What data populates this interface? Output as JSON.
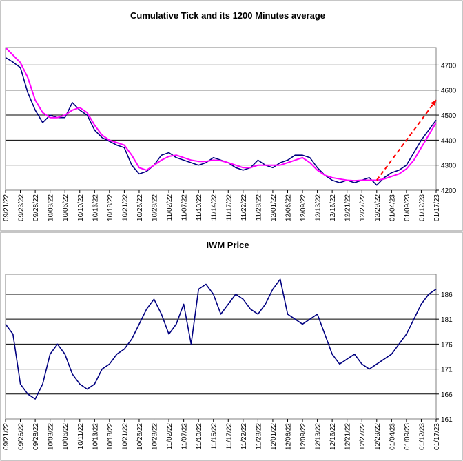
{
  "chart_data": [
    {
      "type": "line",
      "title": "Cumulative Tick and its 1200 Minutes average",
      "xlabel": "",
      "ylabel": "",
      "ylim": [
        4200,
        4770
      ],
      "yticks": [
        4200,
        4300,
        4400,
        4500,
        4600,
        4700
      ],
      "grid": true,
      "legend": "none",
      "x_tick_labels": [
        "09/21/22",
        "09/23/22",
        "09/28/22",
        "10/03/22",
        "10/06/22",
        "10/10/22",
        "10/13/22",
        "10/18/22",
        "10/21/22",
        "10/26/22",
        "10/28/22",
        "11/02/22",
        "11/07/22",
        "11/10/22",
        "11/14/22",
        "11/17/22",
        "11/22/22",
        "11/28/22",
        "12/01/22",
        "12/06/22",
        "12/09/22",
        "12/13/22",
        "12/16/22",
        "12/21/22",
        "12/27/22",
        "12/29/22",
        "01/04/23",
        "01/09/23",
        "01/12/23",
        "01/17/23"
      ],
      "series": [
        {
          "color": "#000080",
          "x": [
            0,
            0.5,
            1,
            1.5,
            2,
            2.5,
            3,
            3.5,
            4,
            4.5,
            5,
            5.5,
            6,
            6.5,
            7,
            7.5,
            8,
            8.5,
            9,
            9.5,
            10,
            10.5,
            11,
            11.5,
            12,
            12.5,
            13,
            13.5,
            14,
            14.5,
            15,
            15.5,
            16,
            16.5,
            17,
            17.5,
            18,
            18.5,
            19,
            19.5,
            20,
            20.5,
            21,
            21.5,
            22,
            22.5,
            23,
            23.5,
            24,
            24.5,
            25,
            25.5,
            26,
            26.5,
            27,
            27.5,
            28,
            28.5,
            29
          ],
          "values": [
            4730,
            4712,
            4690,
            4590,
            4520,
            4470,
            4500,
            4490,
            4490,
            4550,
            4520,
            4500,
            4440,
            4410,
            4395,
            4380,
            4370,
            4300,
            4265,
            4275,
            4300,
            4340,
            4350,
            4330,
            4320,
            4310,
            4300,
            4310,
            4330,
            4320,
            4310,
            4290,
            4280,
            4290,
            4320,
            4300,
            4290,
            4310,
            4320,
            4340,
            4340,
            4330,
            4290,
            4260,
            4240,
            4230,
            4240,
            4230,
            4240,
            4250,
            4220,
            4250,
            4270,
            4280,
            4300,
            4350,
            4400,
            4440,
            4480
          ]
        },
        {
          "color": "#FF00FF",
          "x": [
            0,
            0.5,
            1,
            1.5,
            2,
            2.5,
            3,
            3.5,
            4,
            4.5,
            5,
            5.5,
            6,
            6.5,
            7,
            7.5,
            8,
            8.5,
            9,
            9.5,
            10,
            10.5,
            11,
            11.5,
            12,
            12.5,
            13,
            13.5,
            14,
            14.5,
            15,
            15.5,
            16,
            16.5,
            17,
            17.5,
            18,
            18.5,
            19,
            19.5,
            20,
            20.5,
            21,
            21.5,
            22,
            22.5,
            23,
            23.5,
            24,
            24.5,
            25,
            25.5,
            26,
            26.5,
            27,
            27.5,
            28,
            28.5,
            29
          ],
          "values": [
            4770,
            4740,
            4710,
            4650,
            4560,
            4510,
            4490,
            4490,
            4500,
            4520,
            4530,
            4510,
            4460,
            4420,
            4400,
            4390,
            4380,
            4340,
            4290,
            4280,
            4300,
            4320,
            4335,
            4340,
            4330,
            4320,
            4315,
            4315,
            4320,
            4318,
            4310,
            4300,
            4290,
            4290,
            4300,
            4300,
            4300,
            4300,
            4310,
            4320,
            4330,
            4310,
            4280,
            4260,
            4250,
            4245,
            4240,
            4238,
            4240,
            4240,
            4240,
            4245,
            4255,
            4265,
            4285,
            4320,
            4370,
            4420,
            4470
          ]
        }
      ],
      "annotations": [
        {
          "type": "arrow",
          "color": "#FF0000",
          "style": "dashed",
          "from": {
            "x": 25,
            "y": 4240
          },
          "to": {
            "x": 29,
            "y": 4560
          }
        }
      ]
    },
    {
      "type": "line",
      "title": "IWM Price",
      "xlabel": "",
      "ylabel": "",
      "ylim": [
        161,
        190
      ],
      "yticks": [
        161,
        166,
        171,
        176,
        181,
        186
      ],
      "grid": true,
      "legend": "none",
      "x_tick_labels": [
        "09/21/22",
        "09/26/22",
        "09/28/22",
        "10/03/22",
        "10/06/22",
        "10/11/22",
        "10/13/22",
        "10/18/22",
        "10/21/22",
        "10/26/22",
        "10/28/22",
        "11/02/22",
        "11/07/22",
        "11/10/22",
        "11/15/22",
        "11/17/22",
        "11/22/22",
        "11/28/22",
        "12/01/22",
        "12/06/22",
        "12/09/22",
        "12/13/22",
        "12/16/22",
        "12/21/22",
        "12/27/22",
        "12/29/22",
        "01/04/23",
        "01/09/23",
        "01/12/23",
        "01/17/23"
      ],
      "series": [
        {
          "color": "#000080",
          "x": [
            0,
            0.5,
            1,
            1.5,
            2,
            2.5,
            3,
            3.5,
            4,
            4.5,
            5,
            5.5,
            6,
            6.5,
            7,
            7.5,
            8,
            8.5,
            9,
            9.5,
            10,
            10.5,
            11,
            11.5,
            12,
            12.5,
            13,
            13.5,
            14,
            14.5,
            15,
            15.5,
            16,
            16.5,
            17,
            17.5,
            18,
            18.5,
            19,
            19.5,
            20,
            20.5,
            21,
            21.5,
            22,
            22.5,
            23,
            23.5,
            24,
            24.5,
            25,
            25.5,
            26,
            26.5,
            27,
            27.5,
            28,
            28.5,
            29
          ],
          "values": [
            180,
            178,
            168,
            166,
            165,
            168,
            174,
            176,
            174,
            170,
            168,
            167,
            168,
            171,
            172,
            174,
            175,
            177,
            180,
            183,
            185,
            182,
            178,
            180,
            184,
            176,
            187,
            188,
            186,
            182,
            184,
            186,
            185,
            183,
            182,
            184,
            187,
            189,
            182,
            181,
            180,
            181,
            182,
            178,
            174,
            172,
            173,
            174,
            172,
            171,
            172,
            173,
            174,
            176,
            178,
            181,
            184,
            186,
            187
          ]
        }
      ]
    }
  ]
}
